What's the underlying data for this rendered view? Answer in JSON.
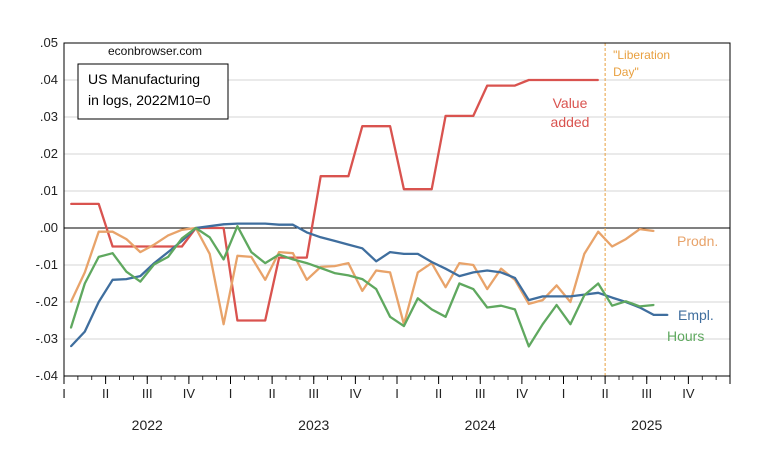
{
  "chart_data": {
    "type": "line",
    "source_label": "econbrowser.com",
    "title_lines": [
      "US Manufacturing",
      "in logs, 2022M10=0"
    ],
    "ylim": [
      -0.04,
      0.05
    ],
    "y_ticks": [
      ".05",
      ".04",
      ".03",
      ".02",
      ".01",
      ".00",
      "-.01",
      "-.02",
      "-.03",
      "-.04"
    ],
    "quarter_labels": [
      "I",
      "II",
      "III",
      "IV",
      "I",
      "II",
      "III",
      "IV",
      "I",
      "II",
      "III",
      "IV",
      "I",
      "II",
      "III",
      "IV"
    ],
    "year_labels": [
      "2022",
      "2023",
      "2024",
      "2025"
    ],
    "x_start": "2022-01",
    "x_end": "2025-12",
    "grid": true,
    "event": {
      "label_lines": [
        "\"Liberation",
        "Day\""
      ],
      "date": "2025-04",
      "color": "#e8a040"
    },
    "series": [
      {
        "name_lines": [
          "Value",
          "added"
        ],
        "color": "#d9534f",
        "x": [
          "2022-01",
          "2022-02",
          "2022-03",
          "2022-04",
          "2022-05",
          "2022-06",
          "2022-07",
          "2022-08",
          "2022-09",
          "2022-10",
          "2022-11",
          "2022-12",
          "2023-01",
          "2023-02",
          "2023-03",
          "2023-04",
          "2023-05",
          "2023-06",
          "2023-07",
          "2023-08",
          "2023-09",
          "2023-10",
          "2023-11",
          "2023-12",
          "2024-01",
          "2024-02",
          "2024-03",
          "2024-04",
          "2024-05",
          "2024-06",
          "2024-07",
          "2024-08",
          "2024-09",
          "2024-10",
          "2024-11",
          "2024-12",
          "2025-01",
          "2025-02",
          "2025-03"
        ],
        "values": [
          0.0065,
          0.0065,
          0.0065,
          -0.005,
          -0.005,
          -0.005,
          -0.005,
          -0.005,
          -0.005,
          0.0,
          0.0,
          0.0,
          -0.025,
          -0.025,
          -0.025,
          -0.008,
          -0.008,
          -0.008,
          0.014,
          0.014,
          0.014,
          0.0275,
          0.0275,
          0.0275,
          0.0105,
          0.0105,
          0.0105,
          0.0303,
          0.0303,
          0.0303,
          0.0385,
          0.0385,
          0.0385,
          0.04,
          0.04,
          0.04,
          0.04,
          0.04,
          0.04
        ]
      },
      {
        "name_lines": [
          "Prodn."
        ],
        "color": "#e8a36a",
        "x": [
          "2022-01",
          "2022-02",
          "2022-03",
          "2022-04",
          "2022-05",
          "2022-06",
          "2022-07",
          "2022-08",
          "2022-09",
          "2022-10",
          "2022-11",
          "2022-12",
          "2023-01",
          "2023-02",
          "2023-03",
          "2023-04",
          "2023-05",
          "2023-06",
          "2023-07",
          "2023-08",
          "2023-09",
          "2023-10",
          "2023-11",
          "2023-12",
          "2024-01",
          "2024-02",
          "2024-03",
          "2024-04",
          "2024-05",
          "2024-06",
          "2024-07",
          "2024-08",
          "2024-09",
          "2024-10",
          "2024-11",
          "2024-12",
          "2025-01",
          "2025-02",
          "2025-03",
          "2025-04",
          "2025-05",
          "2025-06",
          "2025-07"
        ],
        "values": [
          -0.02,
          -0.012,
          -0.001,
          -0.001,
          -0.003,
          -0.0065,
          -0.0045,
          -0.002,
          -0.0005,
          0.0,
          -0.007,
          -0.026,
          -0.0075,
          -0.0078,
          -0.014,
          -0.0065,
          -0.0068,
          -0.014,
          -0.0105,
          -0.0103,
          -0.0095,
          -0.017,
          -0.0115,
          -0.012,
          -0.026,
          -0.012,
          -0.0095,
          -0.016,
          -0.0095,
          -0.01,
          -0.0165,
          -0.011,
          -0.014,
          -0.0205,
          -0.0195,
          -0.0155,
          -0.02,
          -0.007,
          -0.001,
          -0.005,
          -0.003,
          -0.0003,
          -0.0008
        ]
      },
      {
        "name_lines": [
          "Empl."
        ],
        "color": "#3f6e9e",
        "x": [
          "2022-01",
          "2022-02",
          "2022-03",
          "2022-04",
          "2022-05",
          "2022-06",
          "2022-07",
          "2022-08",
          "2022-09",
          "2022-10",
          "2022-11",
          "2022-12",
          "2023-01",
          "2023-02",
          "2023-03",
          "2023-04",
          "2023-05",
          "2023-06",
          "2023-07",
          "2023-08",
          "2023-09",
          "2023-10",
          "2023-11",
          "2023-12",
          "2024-01",
          "2024-02",
          "2024-03",
          "2024-04",
          "2024-05",
          "2024-06",
          "2024-07",
          "2024-08",
          "2024-09",
          "2024-10",
          "2024-11",
          "2024-12",
          "2025-01",
          "2025-02",
          "2025-03",
          "2025-04",
          "2025-05",
          "2025-06",
          "2025-07",
          "2025-08"
        ],
        "values": [
          -0.032,
          -0.028,
          -0.02,
          -0.014,
          -0.0138,
          -0.013,
          -0.0095,
          -0.0065,
          -0.0035,
          0.0,
          0.0005,
          0.001,
          0.0012,
          0.0012,
          0.0012,
          0.0009,
          0.0009,
          -0.0012,
          -0.0025,
          -0.0035,
          -0.0045,
          -0.0055,
          -0.009,
          -0.0065,
          -0.007,
          -0.007,
          -0.0092,
          -0.011,
          -0.013,
          -0.012,
          -0.0115,
          -0.012,
          -0.0135,
          -0.0195,
          -0.0185,
          -0.0185,
          -0.0185,
          -0.018,
          -0.0175,
          -0.0188,
          -0.02,
          -0.0215,
          -0.0235,
          -0.0235
        ]
      },
      {
        "name_lines": [
          "Hours"
        ],
        "color": "#5fa85f",
        "x": [
          "2022-01",
          "2022-02",
          "2022-03",
          "2022-04",
          "2022-05",
          "2022-06",
          "2022-07",
          "2022-08",
          "2022-09",
          "2022-10",
          "2022-11",
          "2022-12",
          "2023-01",
          "2023-02",
          "2023-03",
          "2023-04",
          "2023-05",
          "2023-06",
          "2023-07",
          "2023-08",
          "2023-09",
          "2023-10",
          "2023-11",
          "2023-12",
          "2024-01",
          "2024-02",
          "2024-03",
          "2024-04",
          "2024-05",
          "2024-06",
          "2024-07",
          "2024-08",
          "2024-09",
          "2024-10",
          "2024-11",
          "2024-12",
          "2025-01",
          "2025-02",
          "2025-03",
          "2025-04",
          "2025-05",
          "2025-06",
          "2025-07"
        ],
        "values": [
          -0.027,
          -0.015,
          -0.0078,
          -0.0068,
          -0.0118,
          -0.0145,
          -0.0098,
          -0.0078,
          -0.0028,
          0.0,
          -0.0025,
          -0.0085,
          0.0005,
          -0.0065,
          -0.0095,
          -0.0072,
          -0.0085,
          -0.0095,
          -0.0108,
          -0.0122,
          -0.0128,
          -0.0138,
          -0.0165,
          -0.024,
          -0.0265,
          -0.019,
          -0.022,
          -0.024,
          -0.015,
          -0.0165,
          -0.0215,
          -0.021,
          -0.022,
          -0.032,
          -0.026,
          -0.0208,
          -0.026,
          -0.0182,
          -0.015,
          -0.021,
          -0.0198,
          -0.0212,
          -0.0208
        ]
      }
    ]
  }
}
